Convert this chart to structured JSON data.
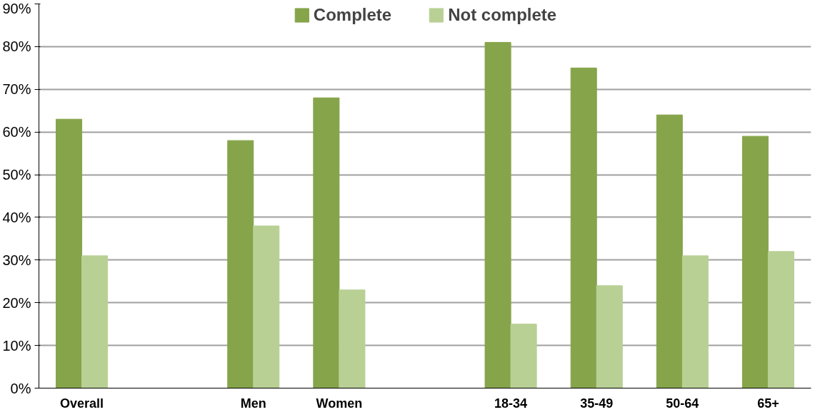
{
  "chart_data": {
    "type": "bar",
    "categories": [
      "Overall",
      null,
      "Men",
      "Women",
      null,
      "18-34",
      "35-49",
      "50-64",
      "65+"
    ],
    "series": [
      {
        "name": "Complete",
        "color": "#86a44a",
        "values": [
          63,
          null,
          58,
          68,
          null,
          81,
          75,
          64,
          59
        ]
      },
      {
        "name": "Not complete",
        "color": "#b9d095",
        "values": [
          31,
          null,
          38,
          23,
          null,
          15,
          24,
          31,
          32
        ]
      }
    ],
    "ylim": [
      0,
      90
    ],
    "yticks": [
      {
        "value": 0,
        "label": "0%"
      },
      {
        "value": 10,
        "label": "10%"
      },
      {
        "value": 20,
        "label": "20%"
      },
      {
        "value": 30,
        "label": "30%"
      },
      {
        "value": 40,
        "label": "40%"
      },
      {
        "value": 50,
        "label": "50%"
      },
      {
        "value": 60,
        "label": "60%"
      },
      {
        "value": 70,
        "label": "70%"
      },
      {
        "value": 80,
        "label": "80%"
      },
      {
        "value": 90,
        "label": "90%"
      }
    ],
    "grid": "y",
    "legend": "top"
  }
}
